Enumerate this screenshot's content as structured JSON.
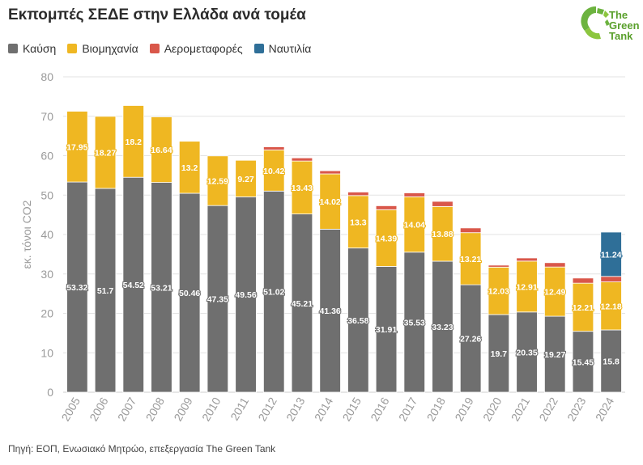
{
  "title": "Εκπομπές ΣΕΔΕ στην Ελλάδα ανά τομέα",
  "logo": {
    "line1": "The",
    "line2": "Green",
    "line3": "Tank"
  },
  "source": "Πηγή: ΕΟΠ, Ενωσιακό Μητρώο, επεξεργασία The Green Tank",
  "colors": {
    "kafsi": "#6f6f6f",
    "viomichania": "#efb722",
    "aerometafores": "#d9574a",
    "naftilia": "#2f6f98"
  },
  "chart_data": {
    "type": "bar",
    "stacked": true,
    "ylabel": "εκ. τόνοι CO2",
    "ylim": [
      0,
      80
    ],
    "yticks": [
      0,
      10,
      20,
      30,
      40,
      50,
      60,
      70,
      80
    ],
    "grid": true,
    "legend_position": "top-left",
    "categories": [
      "2005",
      "2006",
      "2007",
      "2008",
      "2009",
      "2010",
      "2011",
      "2012",
      "2013",
      "2014",
      "2015",
      "2016",
      "2017",
      "2018",
      "2019",
      "2020",
      "2021",
      "2022",
      "2023",
      "2024"
    ],
    "series": [
      {
        "name": "Καύση",
        "color": "#6f6f6f",
        "label_color": "#ffffff",
        "values": [
          53.32,
          51.7,
          54.52,
          53.21,
          50.46,
          47.35,
          49.56,
          51.02,
          45.21,
          41.36,
          36.58,
          31.91,
          35.53,
          33.23,
          27.26,
          19.7,
          20.35,
          19.27,
          15.45,
          15.8
        ]
      },
      {
        "name": "Βιομηχανία",
        "color": "#efb722",
        "label_color": "#ffffff",
        "values": [
          17.95,
          18.27,
          18.2,
          16.64,
          13.2,
          12.59,
          9.27,
          10.42,
          13.43,
          14.02,
          13.3,
          14.39,
          14.04,
          13.88,
          13.21,
          12.03,
          12.91,
          12.49,
          12.21,
          12.18
        ]
      },
      {
        "name": "Αερομεταφορές",
        "color": "#d9574a",
        "label_color": null,
        "values": [
          0,
          0,
          0,
          0,
          0,
          0,
          0,
          0.8,
          0.8,
          0.8,
          0.9,
          1.0,
          1.0,
          1.3,
          1.2,
          0.5,
          0.8,
          1.1,
          1.3,
          1.4
        ]
      },
      {
        "name": "Ναυτιλία",
        "color": "#2f6f98",
        "label_color": "#ffffff",
        "values": [
          0,
          0,
          0,
          0,
          0,
          0,
          0,
          0,
          0,
          0,
          0,
          0,
          0,
          0,
          0,
          0,
          0,
          0,
          0,
          11.24
        ]
      }
    ]
  }
}
